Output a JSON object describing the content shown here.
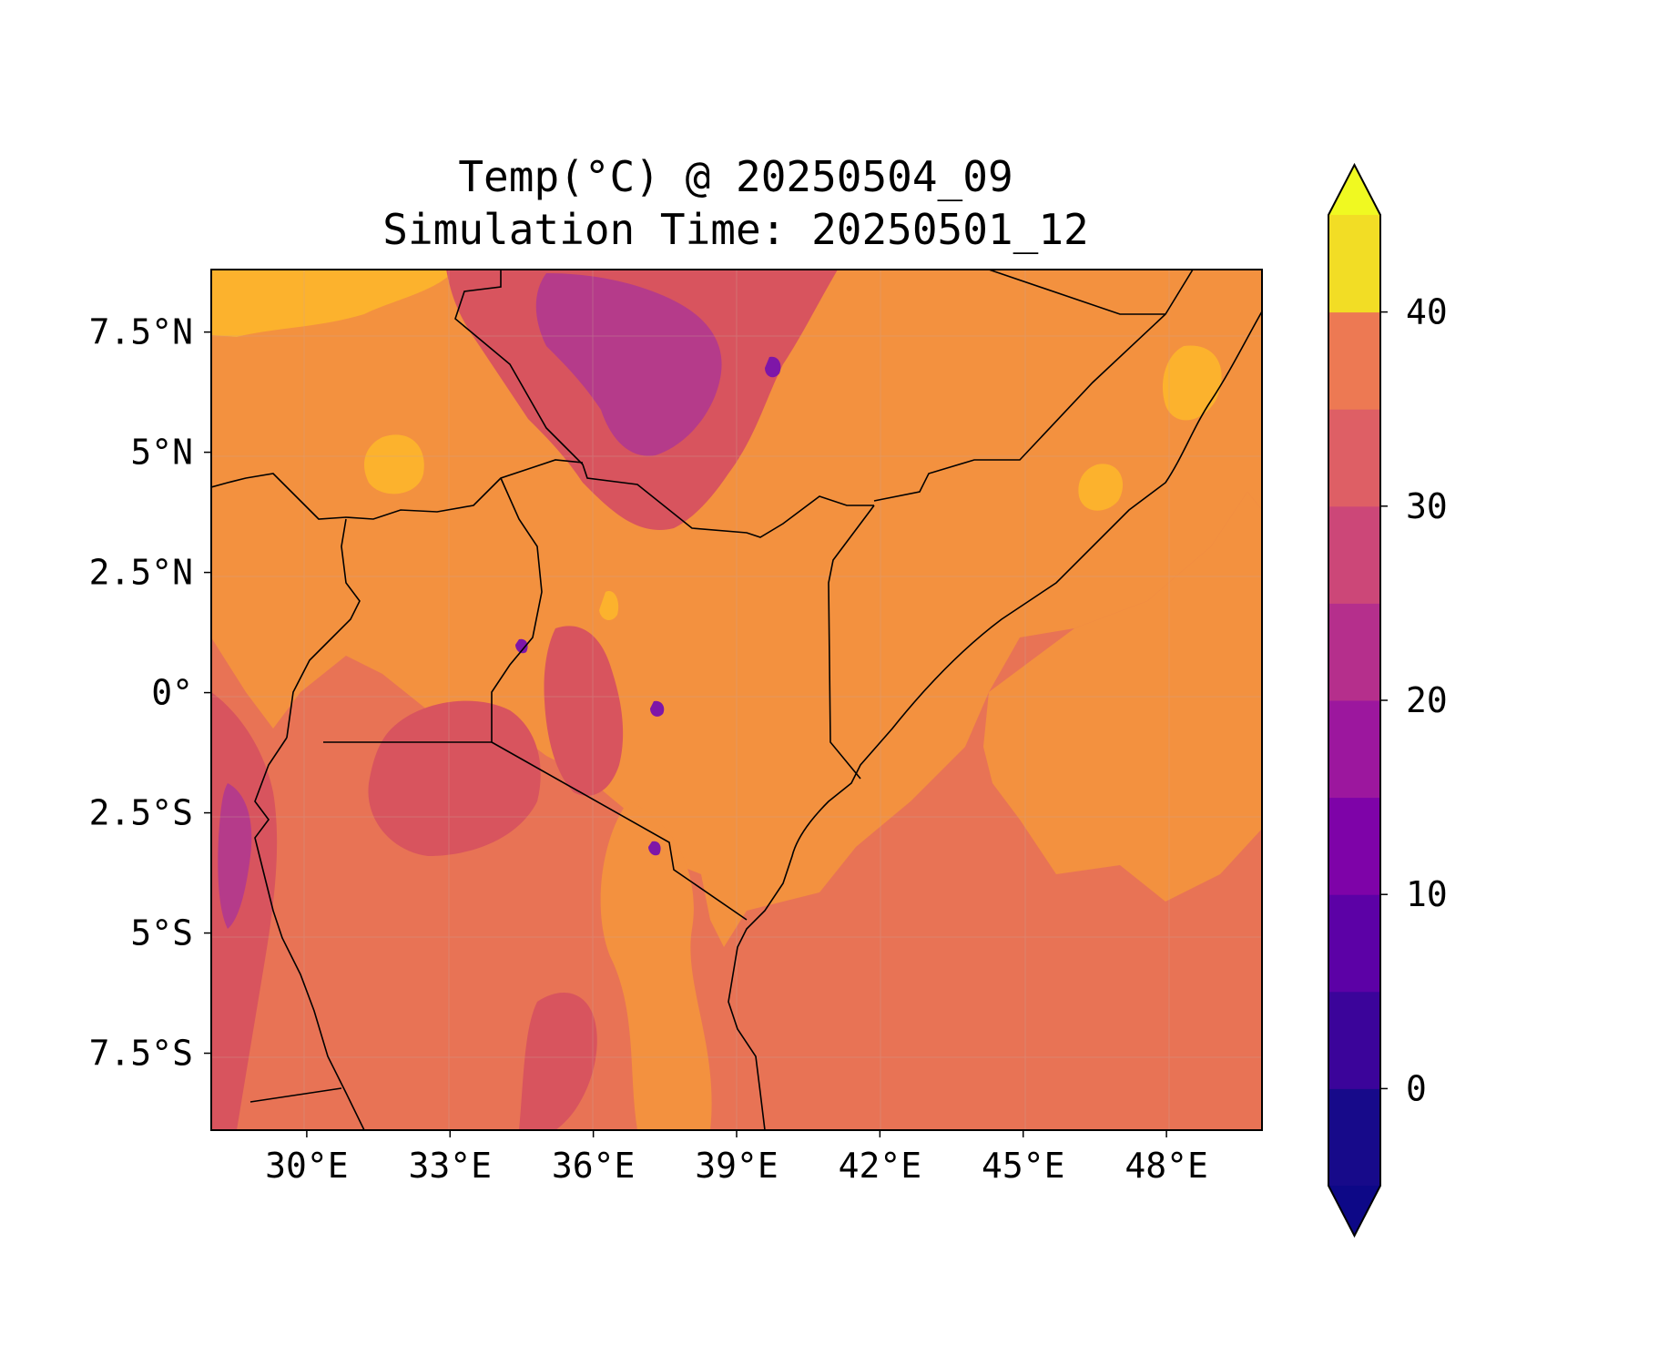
{
  "title": {
    "line1": "Temp(°C) @ 20250504_09",
    "line2": "Simulation Time: 20250501_12"
  },
  "map": {
    "lon_range": [
      28.0,
      50.0
    ],
    "lat_range": [
      -9.1,
      8.8
    ],
    "x_ticks": [
      {
        "value": 30,
        "label": "30°E"
      },
      {
        "value": 33,
        "label": "33°E"
      },
      {
        "value": 36,
        "label": "36°E"
      },
      {
        "value": 39,
        "label": "39°E"
      },
      {
        "value": 42,
        "label": "42°E"
      },
      {
        "value": 45,
        "label": "45°E"
      },
      {
        "value": 48,
        "label": "48°E"
      }
    ],
    "y_ticks": [
      {
        "value": 7.5,
        "label": "7.5°N"
      },
      {
        "value": 5,
        "label": "5°N"
      },
      {
        "value": 2.5,
        "label": "2.5°N"
      },
      {
        "value": 0,
        "label": "0°"
      },
      {
        "value": -2.5,
        "label": "2.5°S"
      },
      {
        "value": -5,
        "label": "5°S"
      },
      {
        "value": -7.5,
        "label": "7.5°S"
      }
    ],
    "grid": true
  },
  "colorbar": {
    "levels": [
      -5,
      0,
      5,
      10,
      15,
      20,
      25,
      30,
      35,
      40,
      45
    ],
    "colors": [
      "#170a8a",
      "#3b049a",
      "#5c01a6",
      "#7e03a8",
      "#9c179e",
      "#b52f8c",
      "#cc4778",
      "#de5f65",
      "#ed7953",
      "#f89540",
      "#fdb42f"
    ],
    "extend_low_color": "#0d0887",
    "extend_high_color": "#f0f921",
    "top_band_color": "#f2dd25",
    "ticks": [
      {
        "value": 0,
        "label": "0"
      },
      {
        "value": 10,
        "label": "10"
      },
      {
        "value": 20,
        "label": "20"
      },
      {
        "value": 30,
        "label": "30"
      },
      {
        "value": 40,
        "label": "40"
      }
    ]
  },
  "colors": {
    "ocean_field": "#e87355",
    "warm_land": "#f3913f",
    "hot_land": "#fcb22d",
    "cool_land": "#d8545e",
    "cold_highland": "#b53b8a",
    "cold_peak": "#7e16a8",
    "border_line": "#000000"
  }
}
